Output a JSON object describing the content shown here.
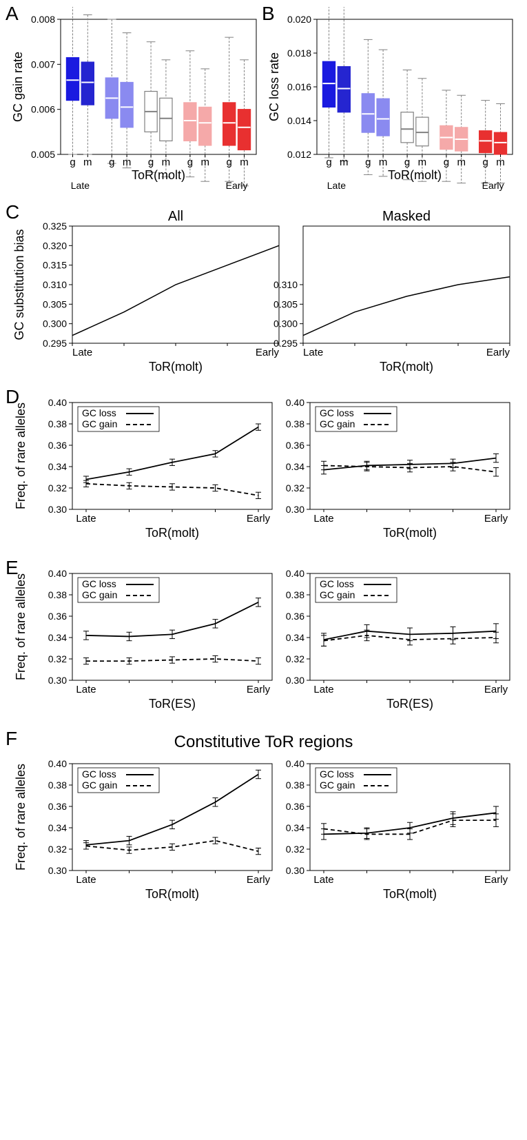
{
  "colors": {
    "blue_dark": "#1a1ae0",
    "blue_med": "#2525d0",
    "blue_light": "#8a8af0",
    "white_box": "#ffffff",
    "pink": "#f5a9a9",
    "red": "#e83030",
    "black": "#000000",
    "gray_whisker": "#808080"
  },
  "panelA": {
    "label": "A",
    "ylabel": "GC gain rate",
    "xlabel": "ToR(molt)",
    "ylim": [
      0.005,
      0.008
    ],
    "yticks": [
      0.005,
      0.006,
      0.007,
      0.008
    ],
    "x_cat_labels": [
      "g",
      "m",
      "g",
      "m",
      "g",
      "m",
      "g",
      "m",
      "g",
      "m"
    ],
    "x_group_labels": [
      "Late",
      "",
      "",
      "",
      "Early"
    ],
    "boxes": [
      {
        "q1": 0.0062,
        "med": 0.00665,
        "q3": 0.00715,
        "wl": 0.005,
        "wh": 0.0083,
        "color": "#1a1ae0",
        "border": "#1a1ae0"
      },
      {
        "q1": 0.0061,
        "med": 0.0066,
        "q3": 0.00705,
        "wl": 0.005,
        "wh": 0.0081,
        "color": "#2525d0",
        "border": "#2525d0"
      },
      {
        "q1": 0.0058,
        "med": 0.00625,
        "q3": 0.0067,
        "wl": 0.0048,
        "wh": 0.008,
        "color": "#8a8af0",
        "border": "#8a8af0"
      },
      {
        "q1": 0.0056,
        "med": 0.00605,
        "q3": 0.0066,
        "wl": 0.0047,
        "wh": 0.0077,
        "color": "#8a8af0",
        "border": "#8a8af0"
      },
      {
        "q1": 0.0055,
        "med": 0.00595,
        "q3": 0.0064,
        "wl": 0.0046,
        "wh": 0.0075,
        "color": "#ffffff",
        "border": "#808080"
      },
      {
        "q1": 0.0053,
        "med": 0.0058,
        "q3": 0.00625,
        "wl": 0.0045,
        "wh": 0.0071,
        "color": "#ffffff",
        "border": "#808080"
      },
      {
        "q1": 0.0053,
        "med": 0.00575,
        "q3": 0.00615,
        "wl": 0.0045,
        "wh": 0.0073,
        "color": "#f5a9a9",
        "border": "#f5a9a9"
      },
      {
        "q1": 0.0052,
        "med": 0.0057,
        "q3": 0.00605,
        "wl": 0.0044,
        "wh": 0.0069,
        "color": "#f5a9a9",
        "border": "#f5a9a9"
      },
      {
        "q1": 0.0052,
        "med": 0.0057,
        "q3": 0.00615,
        "wl": 0.0044,
        "wh": 0.0076,
        "color": "#e83030",
        "border": "#e83030"
      },
      {
        "q1": 0.0051,
        "med": 0.0056,
        "q3": 0.006,
        "wl": 0.0043,
        "wh": 0.0071,
        "color": "#e83030",
        "border": "#e83030"
      }
    ]
  },
  "panelB": {
    "label": "B",
    "ylabel": "GC loss rate",
    "xlabel": "ToR(molt)",
    "ylim": [
      0.012,
      0.02
    ],
    "yticks": [
      0.012,
      0.014,
      0.016,
      0.018,
      0.02
    ],
    "x_cat_labels": [
      "g",
      "m",
      "g",
      "m",
      "g",
      "m",
      "g",
      "m",
      "g",
      "m"
    ],
    "x_group_labels": [
      "Late",
      "",
      "",
      "",
      "Early"
    ],
    "boxes": [
      {
        "q1": 0.0148,
        "med": 0.0162,
        "q3": 0.0175,
        "wl": 0.0118,
        "wh": 0.0212,
        "color": "#1a1ae0",
        "border": "#1a1ae0"
      },
      {
        "q1": 0.0145,
        "med": 0.0159,
        "q3": 0.0172,
        "wl": 0.0116,
        "wh": 0.0208,
        "color": "#2525d0",
        "border": "#2525d0"
      },
      {
        "q1": 0.0133,
        "med": 0.0144,
        "q3": 0.0156,
        "wl": 0.0108,
        "wh": 0.0188,
        "color": "#8a8af0",
        "border": "#8a8af0"
      },
      {
        "q1": 0.0131,
        "med": 0.0141,
        "q3": 0.0153,
        "wl": 0.0107,
        "wh": 0.0182,
        "color": "#8a8af0",
        "border": "#8a8af0"
      },
      {
        "q1": 0.0127,
        "med": 0.0135,
        "q3": 0.0145,
        "wl": 0.0105,
        "wh": 0.017,
        "color": "#ffffff",
        "border": "#808080"
      },
      {
        "q1": 0.0125,
        "med": 0.0133,
        "q3": 0.0142,
        "wl": 0.0104,
        "wh": 0.0165,
        "color": "#ffffff",
        "border": "#808080"
      },
      {
        "q1": 0.0123,
        "med": 0.013,
        "q3": 0.0137,
        "wl": 0.0104,
        "wh": 0.0158,
        "color": "#f5a9a9",
        "border": "#f5a9a9"
      },
      {
        "q1": 0.0122,
        "med": 0.0129,
        "q3": 0.0136,
        "wl": 0.0103,
        "wh": 0.0155,
        "color": "#f5a9a9",
        "border": "#f5a9a9"
      },
      {
        "q1": 0.0121,
        "med": 0.0128,
        "q3": 0.0134,
        "wl": 0.0103,
        "wh": 0.0152,
        "color": "#e83030",
        "border": "#e83030"
      },
      {
        "q1": 0.012,
        "med": 0.0127,
        "q3": 0.0133,
        "wl": 0.0103,
        "wh": 0.015,
        "color": "#e83030",
        "border": "#e83030"
      }
    ]
  },
  "panelC": {
    "label": "C",
    "ylabel": "GC substitution bias",
    "xlabel": "ToR(molt)",
    "left": {
      "title": "All",
      "ylim": [
        0.295,
        0.325
      ],
      "yticks": [
        0.295,
        0.3,
        0.305,
        0.31,
        0.315,
        0.32,
        0.325
      ],
      "x": [
        0,
        1,
        2,
        3,
        4
      ],
      "y": [
        0.297,
        0.303,
        0.31,
        0.315,
        0.32
      ]
    },
    "right": {
      "title": "Masked",
      "ylim": [
        0.295,
        0.325
      ],
      "yticks_show": [
        0.295,
        0.3,
        0.305,
        0.31
      ],
      "x": [
        0,
        1,
        2,
        3,
        4
      ],
      "y": [
        0.297,
        0.303,
        0.307,
        0.31,
        0.312
      ]
    },
    "x_end_labels": [
      "Late",
      "Early"
    ]
  },
  "linepanels": {
    "ylabel": "Freq. of rare alleles",
    "ylim": [
      0.3,
      0.4
    ],
    "yticks": [
      0.3,
      0.32,
      0.34,
      0.36,
      0.38,
      0.4
    ],
    "x": [
      0,
      1,
      2,
      3,
      4
    ],
    "x_end_labels": [
      "Late",
      "Early"
    ],
    "legend": {
      "loss": "GC loss",
      "gain": "GC gain"
    }
  },
  "panelD": {
    "label": "D",
    "xlabel": "ToR(molt)",
    "left": {
      "loss": {
        "y": [
          0.328,
          0.335,
          0.344,
          0.352,
          0.377
        ],
        "err": [
          0.003,
          0.003,
          0.003,
          0.003,
          0.003
        ]
      },
      "gain": {
        "y": [
          0.324,
          0.322,
          0.321,
          0.32,
          0.313
        ],
        "err": [
          0.003,
          0.003,
          0.003,
          0.003,
          0.003
        ]
      }
    },
    "right": {
      "loss": {
        "y": [
          0.337,
          0.341,
          0.342,
          0.343,
          0.348
        ],
        "err": [
          0.004,
          0.004,
          0.004,
          0.004,
          0.004
        ]
      },
      "gain": {
        "y": [
          0.341,
          0.34,
          0.339,
          0.34,
          0.335
        ],
        "err": [
          0.004,
          0.004,
          0.004,
          0.004,
          0.004
        ]
      }
    }
  },
  "panelE": {
    "label": "E",
    "xlabel": "ToR(ES)",
    "left": {
      "loss": {
        "y": [
          0.342,
          0.341,
          0.343,
          0.353,
          0.373
        ],
        "err": [
          0.004,
          0.004,
          0.004,
          0.004,
          0.004
        ]
      },
      "gain": {
        "y": [
          0.318,
          0.318,
          0.319,
          0.32,
          0.318
        ],
        "err": [
          0.003,
          0.003,
          0.003,
          0.003,
          0.003
        ]
      }
    },
    "right": {
      "loss": {
        "y": [
          0.338,
          0.346,
          0.343,
          0.344,
          0.346
        ],
        "err": [
          0.006,
          0.006,
          0.006,
          0.006,
          0.007
        ]
      },
      "gain": {
        "y": [
          0.337,
          0.342,
          0.338,
          0.339,
          0.34
        ],
        "err": [
          0.005,
          0.005,
          0.005,
          0.005,
          0.005
        ]
      }
    }
  },
  "panelF": {
    "label": "F",
    "section_title": "Constitutive ToR regions",
    "xlabel": "ToR(molt)",
    "left": {
      "loss": {
        "y": [
          0.324,
          0.328,
          0.343,
          0.364,
          0.39
        ],
        "err": [
          0.004,
          0.004,
          0.004,
          0.004,
          0.004
        ]
      },
      "gain": {
        "y": [
          0.323,
          0.319,
          0.322,
          0.328,
          0.318
        ],
        "err": [
          0.003,
          0.003,
          0.003,
          0.003,
          0.003
        ]
      }
    },
    "right": {
      "loss": {
        "y": [
          0.334,
          0.335,
          0.34,
          0.349,
          0.354
        ],
        "err": [
          0.005,
          0.005,
          0.005,
          0.006,
          0.006
        ]
      },
      "gain": {
        "y": [
          0.339,
          0.334,
          0.334,
          0.347,
          0.347
        ],
        "err": [
          0.005,
          0.005,
          0.005,
          0.006,
          0.006
        ]
      }
    }
  }
}
